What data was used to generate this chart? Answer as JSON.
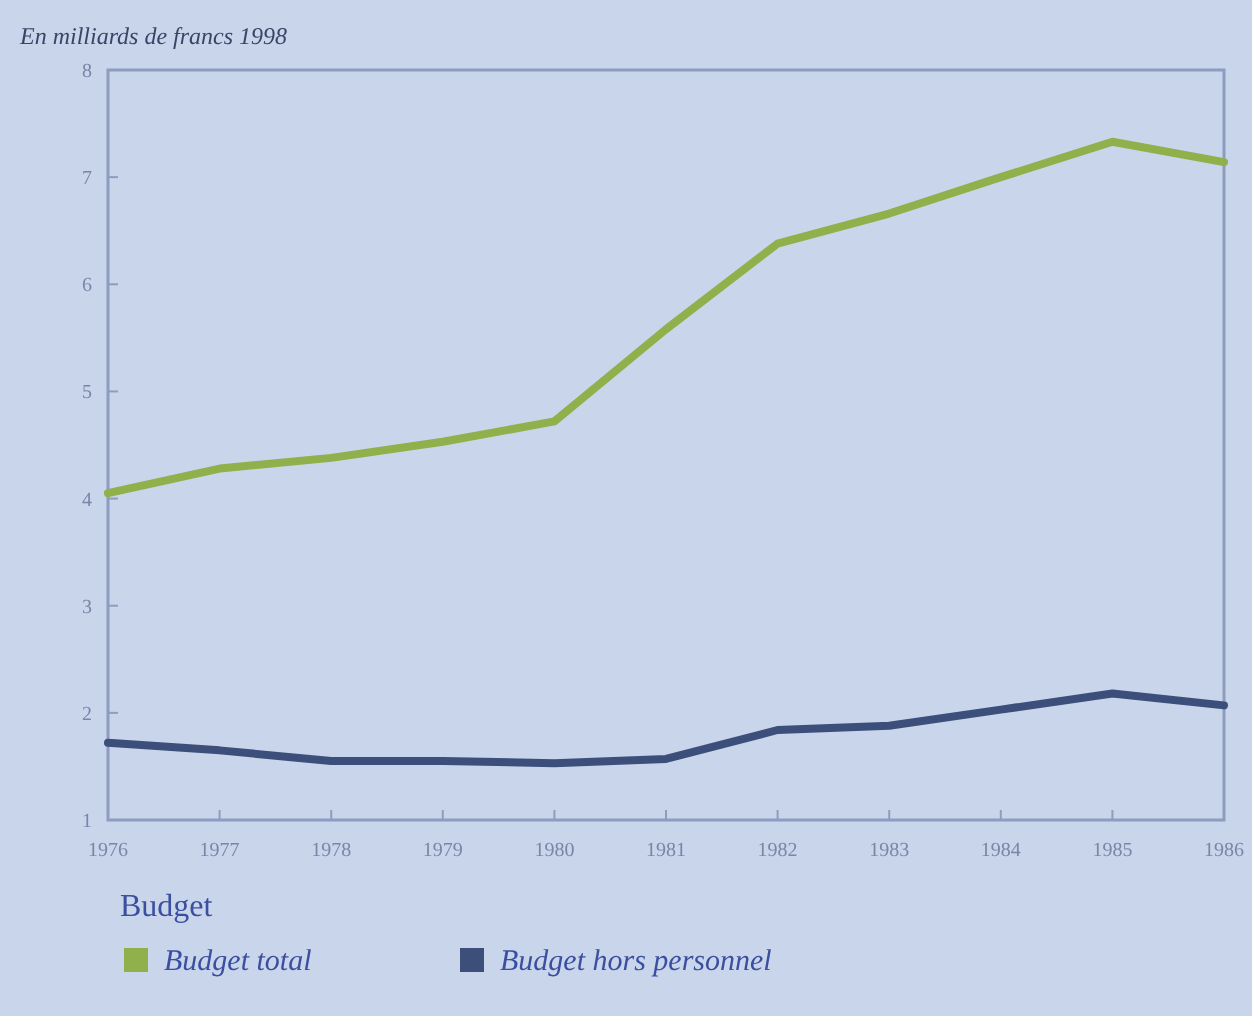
{
  "chart_data": {
    "type": "line",
    "title": "En milliards de francs 1998",
    "legend_title": "Budget",
    "x": [
      1976,
      1977,
      1978,
      1979,
      1980,
      1981,
      1982,
      1983,
      1984,
      1985,
      1986
    ],
    "xlim": [
      1976,
      1986
    ],
    "xticks": [
      1976,
      1977,
      1978,
      1979,
      1980,
      1981,
      1982,
      1983,
      1984,
      1985,
      1986
    ],
    "ylim": [
      1,
      8
    ],
    "yticks": [
      1,
      2,
      3,
      4,
      5,
      6,
      7,
      8
    ],
    "grid": false,
    "legend": "bottom",
    "marker": "none",
    "line_style": "solid",
    "series": [
      {
        "name": "Budget total",
        "color": "#8fb04a",
        "values": [
          4.05,
          4.28,
          4.38,
          4.53,
          4.72,
          5.58,
          6.38,
          6.66,
          7.0,
          7.33,
          7.14
        ]
      },
      {
        "name": "Budget hors personnel",
        "color": "#3c4f7a",
        "values": [
          1.72,
          1.65,
          1.55,
          1.55,
          1.53,
          1.57,
          1.84,
          1.88,
          2.03,
          2.18,
          2.07
        ]
      }
    ]
  }
}
